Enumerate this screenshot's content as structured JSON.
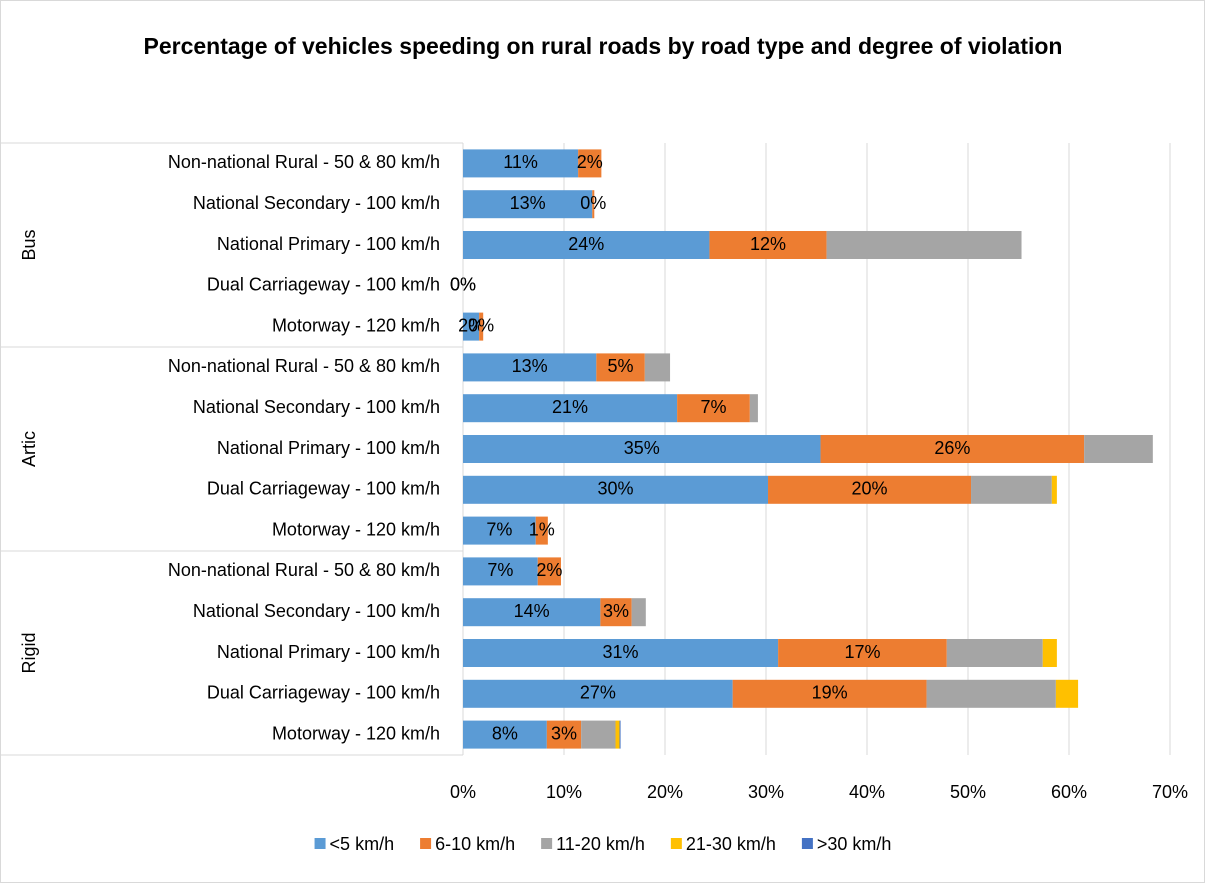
{
  "chart_data": {
    "type": "stacked-bar-horizontal",
    "title": "Percentage of vehicles speeding on rural roads by road type and degree of violation",
    "groups": [
      "Bus",
      "Artic",
      "Rigid"
    ],
    "categories": [
      "Non-national Rural - 50 & 80 km/h",
      "National Secondary - 100 km/h",
      "National Primary - 100 km/h",
      "Dual Carriageway - 100 km/h",
      "Motorway - 120 km/h",
      "Non-national Rural - 50 & 80 km/h",
      "National Secondary - 100 km/h",
      "National Primary - 100 km/h",
      "Dual Carriageway - 100 km/h",
      "Motorway - 120 km/h",
      "Non-national Rural - 50 & 80 km/h",
      "National Secondary - 100 km/h",
      "National Primary - 100 km/h",
      "Dual Carriageway - 100 km/h",
      "Motorway - 120 km/h"
    ],
    "series": [
      {
        "name": "<5 km/h",
        "color": "#5b9bd5",
        "values": [
          11.4,
          12.8,
          24.4,
          0,
          1.6,
          13.2,
          21.2,
          35.4,
          30.2,
          7.2,
          7.4,
          13.6,
          31.2,
          26.7,
          8.3
        ],
        "value_labels": [
          "11%",
          "13%",
          "24%",
          "0%",
          "2%",
          "13%",
          "21%",
          "35%",
          "30%",
          "7%",
          "7%",
          "14%",
          "31%",
          "27%",
          "8%"
        ]
      },
      {
        "name": "6-10 km/h",
        "color": "#ed7d31",
        "values": [
          2.3,
          0.2,
          11.6,
          0,
          0.4,
          4.8,
          7.2,
          26.1,
          20.1,
          1.2,
          2.3,
          3.1,
          16.7,
          19.2,
          3.4
        ],
        "value_labels": [
          "2%",
          "0%",
          "12%",
          "0%",
          "0%",
          "5%",
          "7%",
          "26%",
          "20%",
          "1%",
          "2%",
          "3%",
          "17%",
          "19%",
          "3%"
        ]
      },
      {
        "name": "11-20 km/h",
        "color": "#a5a5a5",
        "values": [
          0,
          0,
          19.3,
          0,
          0,
          2.5,
          0.8,
          6.8,
          8.0,
          0,
          0,
          1.4,
          9.5,
          12.8,
          3.4
        ]
      },
      {
        "name": "21-30 km/h",
        "color": "#ffc000",
        "values": [
          0,
          0,
          0,
          0,
          0,
          0,
          0,
          0,
          0.5,
          0,
          0,
          0,
          1.4,
          2.2,
          0.4
        ]
      },
      {
        "name": ">30 km/h",
        "color": "#4472c4",
        "values": [
          0,
          0,
          0,
          0,
          0,
          0,
          0,
          0,
          0,
          0,
          0,
          0,
          0,
          0,
          0.1
        ]
      }
    ],
    "xlim": [
      0,
      70
    ],
    "xticks": [
      {
        "value": 0,
        "label": "0%"
      },
      {
        "value": 10,
        "label": "10%"
      },
      {
        "value": 20,
        "label": "20%"
      },
      {
        "value": 30,
        "label": "30%"
      },
      {
        "value": 40,
        "label": "40%"
      },
      {
        "value": 50,
        "label": "50%"
      },
      {
        "value": 60,
        "label": "60%"
      },
      {
        "value": 70,
        "label": "70%"
      }
    ],
    "grid": true,
    "legend": "bottom"
  }
}
